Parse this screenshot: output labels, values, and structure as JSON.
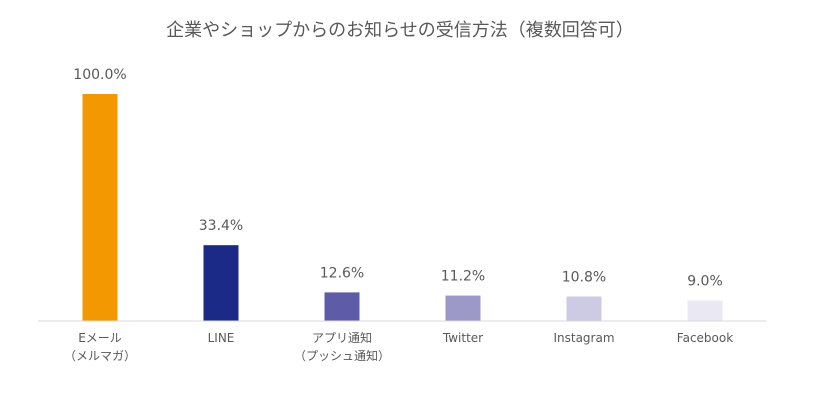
{
  "chart_data": {
    "type": "bar",
    "title": "企業やショップからのお知らせの受信方法（複数回答可）",
    "categories": [
      [
        "Eメール",
        "（メルマガ）"
      ],
      [
        "LINE"
      ],
      [
        "アプリ通知",
        "（プッシュ通知）"
      ],
      [
        "Twitter"
      ],
      [
        "Instagram"
      ],
      [
        "Facebook"
      ]
    ],
    "values": [
      100.0,
      33.4,
      12.6,
      11.2,
      10.8,
      9.0
    ],
    "value_labels": [
      "100.0%",
      "33.4%",
      "12.6%",
      "11.2%",
      "10.8%",
      "9.0%"
    ],
    "colors": [
      "#F39800",
      "#1B2A87",
      "#5F5CA7",
      "#9C98C8",
      "#CDCBE4",
      "#E9E8F3"
    ],
    "xlabel": "",
    "ylabel": "",
    "ylim": [
      0,
      100
    ],
    "grid": false,
    "legend": "none"
  }
}
